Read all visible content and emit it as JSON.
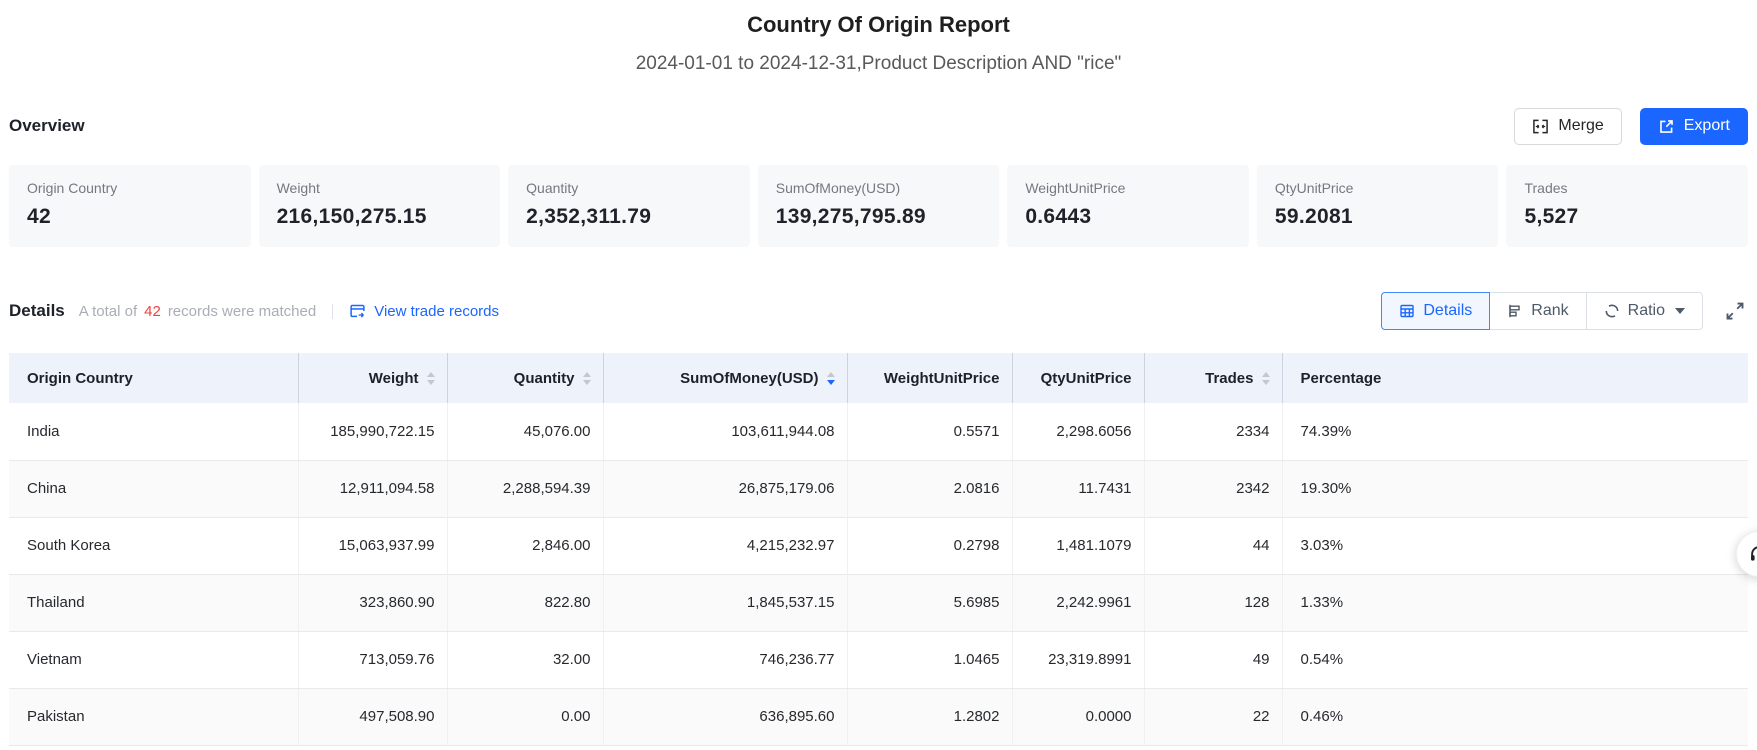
{
  "report": {
    "title": "Country Of Origin Report",
    "subtitle": "2024-01-01 to 2024-12-31,Product Description AND \"rice\""
  },
  "overview": {
    "heading": "Overview",
    "merge_button": "Merge",
    "export_button": "Export",
    "cards": [
      {
        "label": "Origin Country",
        "value": "42"
      },
      {
        "label": "Weight",
        "value": "216,150,275.15"
      },
      {
        "label": "Quantity",
        "value": "2,352,311.79"
      },
      {
        "label": "SumOfMoney(USD)",
        "value": "139,275,795.89"
      },
      {
        "label": "WeightUnitPrice",
        "value": "0.6443"
      },
      {
        "label": "QtyUnitPrice",
        "value": "59.2081"
      },
      {
        "label": "Trades",
        "value": "5,527"
      }
    ]
  },
  "details": {
    "heading": "Details",
    "match_prefix": "A total of",
    "match_count": "42",
    "match_suffix": "records were matched",
    "view_trade_records": "View trade records",
    "view_modes": [
      {
        "label": "Details",
        "icon": "table-grid-icon",
        "active": true,
        "dropdown": false
      },
      {
        "label": "Rank",
        "icon": "rank-icon",
        "active": false,
        "dropdown": false
      },
      {
        "label": "Ratio",
        "icon": "ratio-icon",
        "active": false,
        "dropdown": true
      }
    ]
  },
  "table": {
    "columns": [
      {
        "label": "Origin Country",
        "align": "left",
        "sortable": false,
        "sort": "none"
      },
      {
        "label": "Weight",
        "align": "right",
        "sortable": true,
        "sort": "none"
      },
      {
        "label": "Quantity",
        "align": "right",
        "sortable": true,
        "sort": "none"
      },
      {
        "label": "SumOfMoney(USD)",
        "align": "right",
        "sortable": true,
        "sort": "desc"
      },
      {
        "label": "WeightUnitPrice",
        "align": "right",
        "sortable": false,
        "sort": "none"
      },
      {
        "label": "QtyUnitPrice",
        "align": "right",
        "sortable": false,
        "sort": "none"
      },
      {
        "label": "Trades",
        "align": "right",
        "sortable": true,
        "sort": "none"
      },
      {
        "label": "Percentage",
        "align": "left",
        "sortable": false,
        "sort": "none"
      }
    ],
    "rows": [
      [
        "India",
        "185,990,722.15",
        "45,076.00",
        "103,611,944.08",
        "0.5571",
        "2,298.6056",
        "2334",
        "74.39%"
      ],
      [
        "China",
        "12,911,094.58",
        "2,288,594.39",
        "26,875,179.06",
        "2.0816",
        "11.7431",
        "2342",
        "19.30%"
      ],
      [
        "South Korea",
        "15,063,937.99",
        "2,846.00",
        "4,215,232.97",
        "0.2798",
        "1,481.1079",
        "44",
        "3.03%"
      ],
      [
        "Thailand",
        "323,860.90",
        "822.80",
        "1,845,537.15",
        "5.6985",
        "2,242.9961",
        "128",
        "1.33%"
      ],
      [
        "Vietnam",
        "713,059.76",
        "32.00",
        "746,236.77",
        "1.0465",
        "23,319.8991",
        "49",
        "0.54%"
      ],
      [
        "Pakistan",
        "497,508.90",
        "0.00",
        "636,895.60",
        "1.2802",
        "0.0000",
        "22",
        "0.46%"
      ]
    ]
  },
  "colors": {
    "accent_blue": "#1a66ff",
    "count_red": "#f53f3f",
    "table_header_bg": "#edf2fb"
  }
}
